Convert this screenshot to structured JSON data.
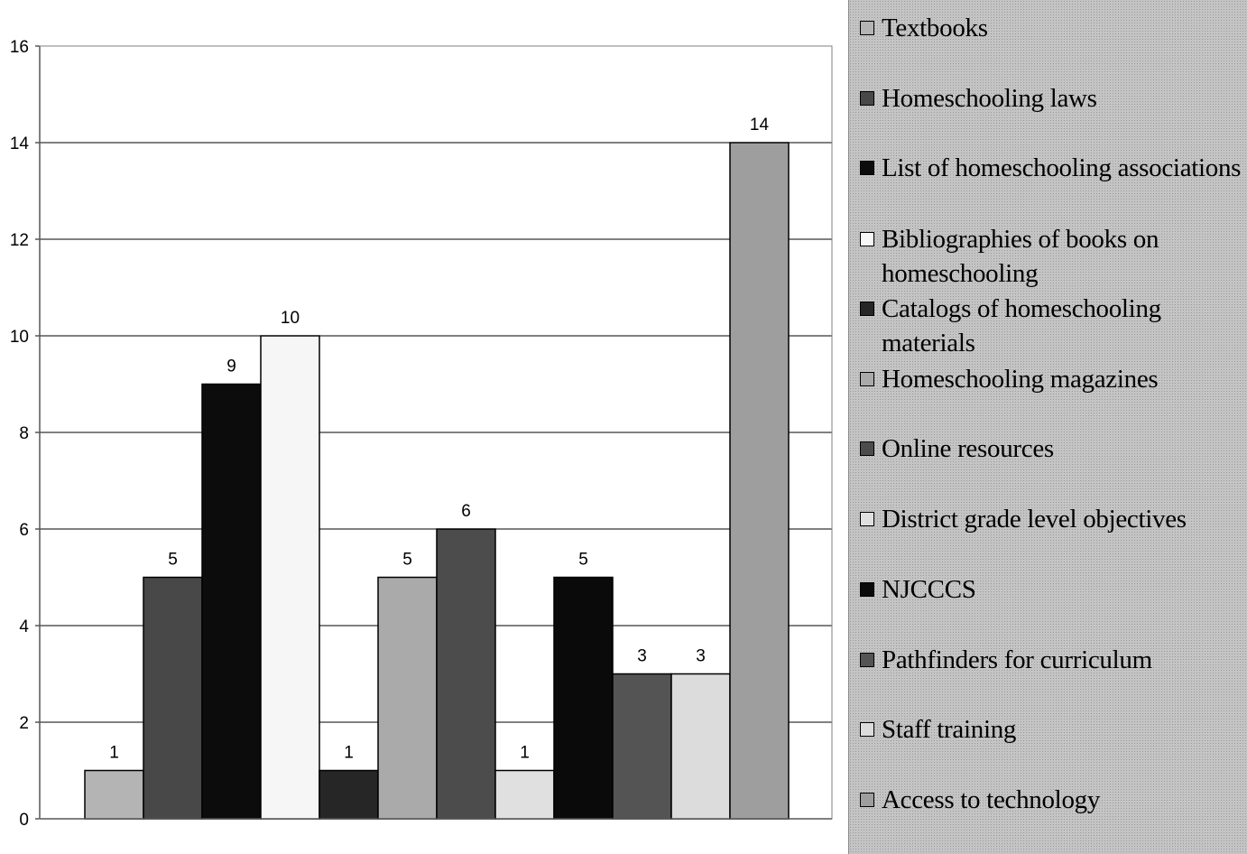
{
  "chart_data": {
    "type": "bar",
    "categories": [
      "Textbooks",
      "Homeschooling laws",
      "List of homeschooling associations",
      "Bibliographies of books on homeschooling",
      "Catalogs of homeschooling materials",
      "Homeschooling magazines",
      "Online resources",
      "District grade level objectives",
      "NJCCCS",
      "Pathfinders for curriculum",
      "Staff training",
      "Access to technology"
    ],
    "values": [
      1,
      5,
      9,
      10,
      1,
      5,
      6,
      1,
      5,
      3,
      3,
      14
    ],
    "data_labels": [
      "1",
      "5",
      "9",
      "10",
      "1",
      "5",
      "6",
      "1",
      "5",
      "3",
      "3",
      "14"
    ],
    "colors": [
      "#b4b4b4",
      "#484848",
      "#0c0c0c",
      "#f6f6f6",
      "#262626",
      "#aaaaaa",
      "#4c4c4c",
      "#e0e0e0",
      "#0a0a0a",
      "#545454",
      "#dcdcdc",
      "#9e9e9e"
    ],
    "ylim": [
      0,
      16
    ],
    "yticks": [
      "0",
      "2",
      "4",
      "6",
      "8",
      "10",
      "12",
      "14",
      "16"
    ],
    "grid": true,
    "legend_position": "right",
    "title": "",
    "xlabel": "",
    "ylabel": ""
  },
  "legend": {
    "items": [
      {
        "label": "Textbooks",
        "color": "#b4b4b4"
      },
      {
        "label": "Homeschooling laws",
        "color": "#484848"
      },
      {
        "label": "List of homeschooling associations",
        "color": "#0c0c0c"
      },
      {
        "label": "Bibliographies of books on homeschooling",
        "color": "#f6f6f6"
      },
      {
        "label": "Catalogs of homeschooling materials",
        "color": "#262626"
      },
      {
        "label": "Homeschooling magazines",
        "color": "#aaaaaa"
      },
      {
        "label": "Online resources",
        "color": "#4c4c4c"
      },
      {
        "label": "District grade level objectives",
        "color": "#e0e0e0"
      },
      {
        "label": "NJCCCS",
        "color": "#0a0a0a"
      },
      {
        "label": "Pathfinders for curriculum",
        "color": "#545454"
      },
      {
        "label": "Staff training",
        "color": "#dcdcdc"
      },
      {
        "label": "Access to technology",
        "color": "#9e9e9e"
      }
    ]
  }
}
